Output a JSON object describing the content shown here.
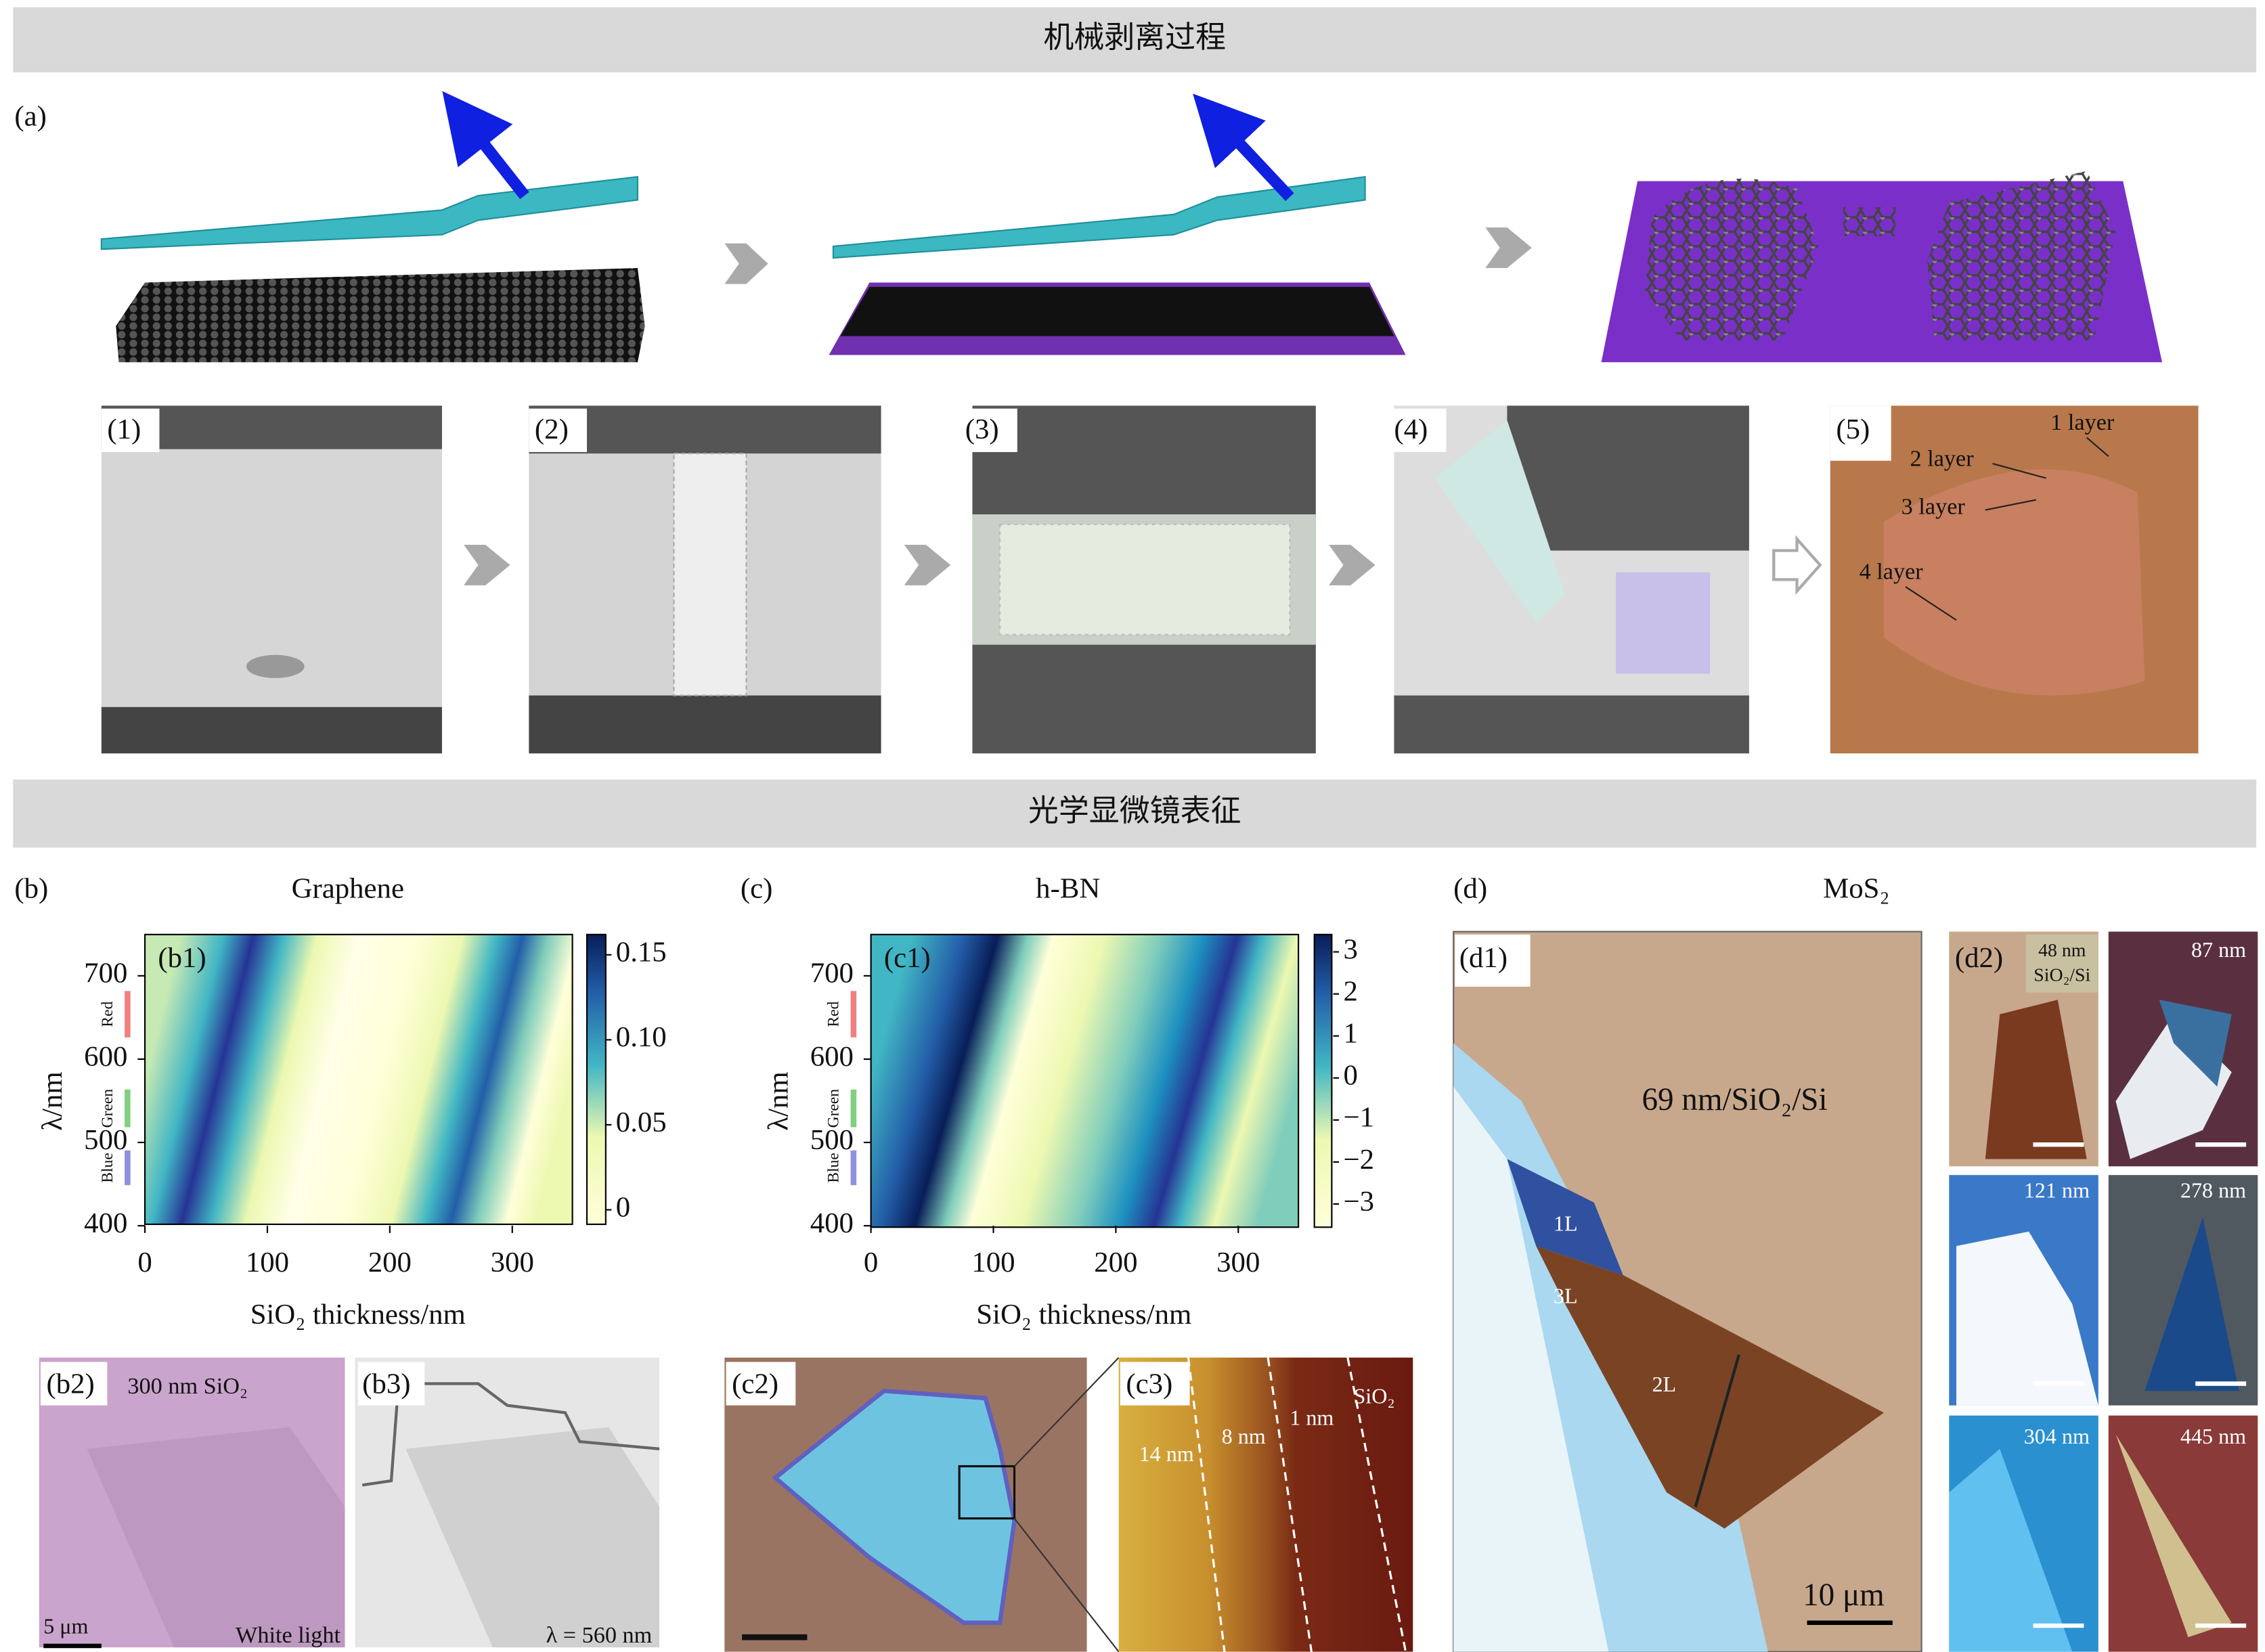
{
  "headers": [
    "机械剥离过程",
    "光学显微镜表征"
  ],
  "panel_a": {
    "label": "(a)",
    "steps": [
      "(1)",
      "(2)",
      "(3)",
      "(4)",
      "(5)"
    ],
    "layers": [
      "1 layer",
      "2 layer",
      "3 layer",
      "4 layer"
    ]
  },
  "panel_b": {
    "label": "(b)",
    "title": "Graphene",
    "sub": "(b1)",
    "y_label": "λ/nm",
    "x_label": "SiO₂ thickness/nm",
    "yticks": [
      "400",
      "500",
      "600",
      "700"
    ],
    "xticks": [
      "0",
      "100",
      "200",
      "300"
    ],
    "colorbar_ticks": [
      "0",
      "0.05",
      "0.10",
      "0.15"
    ],
    "bands": [
      "Blue",
      "Green",
      "Red"
    ],
    "b2": {
      "label": "(b2)",
      "caption": "300 nm SiO₂",
      "scale": "5 μm",
      "light": "White light"
    },
    "b3": {
      "label": "(b3)",
      "caption": "λ = 560 nm"
    }
  },
  "panel_c": {
    "label": "(c)",
    "title": "h-BN",
    "sub": "(c1)",
    "y_label": "λ/nm",
    "x_label": "SiO₂ thickness/nm",
    "yticks": [
      "400",
      "500",
      "600",
      "700"
    ],
    "xticks": [
      "0",
      "100",
      "200",
      "300"
    ],
    "colorbar_ticks": [
      "−3",
      "−2",
      "−1",
      "0",
      "1",
      "2",
      "3"
    ],
    "bands": [
      "Blue",
      "Green",
      "Red"
    ],
    "c2": {
      "label": "(c2)"
    },
    "c3": {
      "label": "(c3)",
      "thicknesses": [
        "14 nm",
        "8 nm",
        "1 nm"
      ],
      "substrate": "SiO₂"
    }
  },
  "panel_d": {
    "label": "(d)",
    "title": "MoS₂",
    "d1": {
      "label": "(d1)",
      "caption": "69 nm/SiO₂/Si",
      "layers": [
        "1L",
        "3L",
        "2L"
      ],
      "scale": "10 μm"
    },
    "d2": {
      "label": "(d2)",
      "tiles": [
        "48 nm",
        "87 nm",
        "121 nm",
        "278 nm",
        "304 nm",
        "445 nm"
      ],
      "substrate": "SiO₂/Si"
    }
  }
}
